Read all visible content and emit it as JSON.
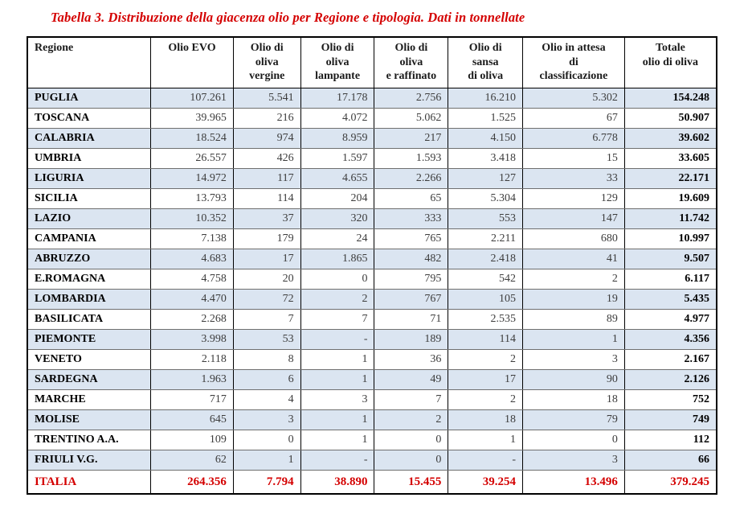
{
  "title": "Tabella 3. Distribuzione della giacenza olio per Regione e tipologia. Dati in tonnellate",
  "colors": {
    "title_red": "#d40000",
    "total_row_red": "#d40000",
    "row_stripe_blue": "#dbe5f1",
    "border_black": "#000000"
  },
  "table": {
    "columns": [
      "Regione",
      "Olio EVO",
      "Olio di\noliva\nvergine",
      "Olio di\noliva\nlampante",
      "Olio di\noliva\ne raffinato",
      "Olio di\nsansa\ndi oliva",
      "Olio in attesa\ndi\nclassificazione",
      "Totale\nolio di oliva"
    ],
    "rows": [
      {
        "region": "PUGLIA",
        "values": [
          "107.261",
          "5.541",
          "17.178",
          "2.756",
          "16.210",
          "5.302",
          "154.248"
        ]
      },
      {
        "region": "TOSCANA",
        "values": [
          "39.965",
          "216",
          "4.072",
          "5.062",
          "1.525",
          "67",
          "50.907"
        ]
      },
      {
        "region": "CALABRIA",
        "values": [
          "18.524",
          "974",
          "8.959",
          "217",
          "4.150",
          "6.778",
          "39.602"
        ]
      },
      {
        "region": "UMBRIA",
        "values": [
          "26.557",
          "426",
          "1.597",
          "1.593",
          "3.418",
          "15",
          "33.605"
        ]
      },
      {
        "region": "LIGURIA",
        "values": [
          "14.972",
          "117",
          "4.655",
          "2.266",
          "127",
          "33",
          "22.171"
        ]
      },
      {
        "region": "SICILIA",
        "values": [
          "13.793",
          "114",
          "204",
          "65",
          "5.304",
          "129",
          "19.609"
        ]
      },
      {
        "region": "LAZIO",
        "values": [
          "10.352",
          "37",
          "320",
          "333",
          "553",
          "147",
          "11.742"
        ]
      },
      {
        "region": "CAMPANIA",
        "values": [
          "7.138",
          "179",
          "24",
          "765",
          "2.211",
          "680",
          "10.997"
        ]
      },
      {
        "region": "ABRUZZO",
        "values": [
          "4.683",
          "17",
          "1.865",
          "482",
          "2.418",
          "41",
          "9.507"
        ]
      },
      {
        "region": "E.ROMAGNA",
        "values": [
          "4.758",
          "20",
          "0",
          "795",
          "542",
          "2",
          "6.117"
        ]
      },
      {
        "region": "LOMBARDIA",
        "values": [
          "4.470",
          "72",
          "2",
          "767",
          "105",
          "19",
          "5.435"
        ]
      },
      {
        "region": "BASILICATA",
        "values": [
          "2.268",
          "7",
          "7",
          "71",
          "2.535",
          "89",
          "4.977"
        ]
      },
      {
        "region": "PIEMONTE",
        "values": [
          "3.998",
          "53",
          "-",
          "189",
          "114",
          "1",
          "4.356"
        ]
      },
      {
        "region": "VENETO",
        "values": [
          "2.118",
          "8",
          "1",
          "36",
          "2",
          "3",
          "2.167"
        ]
      },
      {
        "region": "SARDEGNA",
        "values": [
          "1.963",
          "6",
          "1",
          "49",
          "17",
          "90",
          "2.126"
        ]
      },
      {
        "region": "MARCHE",
        "values": [
          "717",
          "4",
          "3",
          "7",
          "2",
          "18",
          "752"
        ]
      },
      {
        "region": "MOLISE",
        "values": [
          "645",
          "3",
          "1",
          "2",
          "18",
          "79",
          "749"
        ]
      },
      {
        "region": "TRENTINO A.A.",
        "values": [
          "109",
          "0",
          "1",
          "0",
          "1",
          "0",
          "112"
        ]
      },
      {
        "region": "FRIULI V.G.",
        "values": [
          "62",
          "1",
          "-",
          "0",
          "-",
          "3",
          "66"
        ]
      }
    ],
    "totals": {
      "region": "ITALIA",
      "values": [
        "264.356",
        "7.794",
        "38.890",
        "15.455",
        "39.254",
        "13.496",
        "379.245"
      ]
    }
  }
}
